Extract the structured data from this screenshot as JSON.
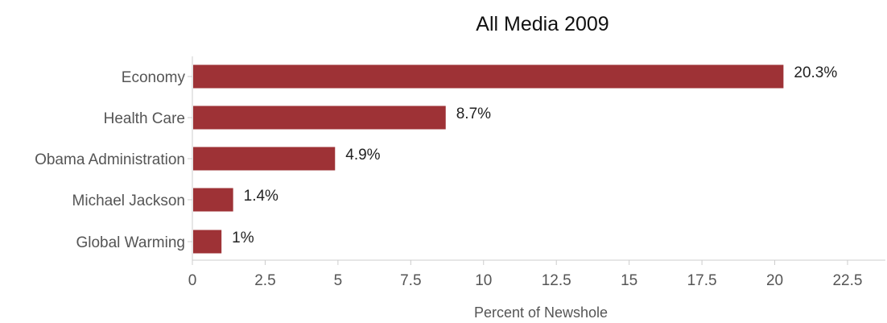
{
  "chart_data": {
    "type": "bar",
    "orientation": "horizontal",
    "title": "All Media 2009",
    "xlabel": "Percent of Newshole",
    "ylabel": "",
    "categories": [
      "Economy",
      "Health Care",
      "Obama Administration",
      "Michael Jackson",
      "Global Warming"
    ],
    "values": [
      20.3,
      8.7,
      4.9,
      1.4,
      1
    ],
    "value_labels": [
      "20.3%",
      "8.7%",
      "4.9%",
      "1.4%",
      "1%"
    ],
    "xlim": [
      0,
      23.8
    ],
    "x_ticks": [
      0,
      2.5,
      5,
      7.5,
      10,
      12.5,
      15,
      17.5,
      20,
      22.5
    ],
    "x_tick_labels": [
      "0",
      "2.5",
      "5",
      "7.5",
      "10",
      "12.5",
      "15",
      "17.5",
      "20",
      "22.5"
    ],
    "grid": false,
    "legend": "none",
    "bar_color": "#9e3236",
    "axis_color": "#cccccc"
  }
}
